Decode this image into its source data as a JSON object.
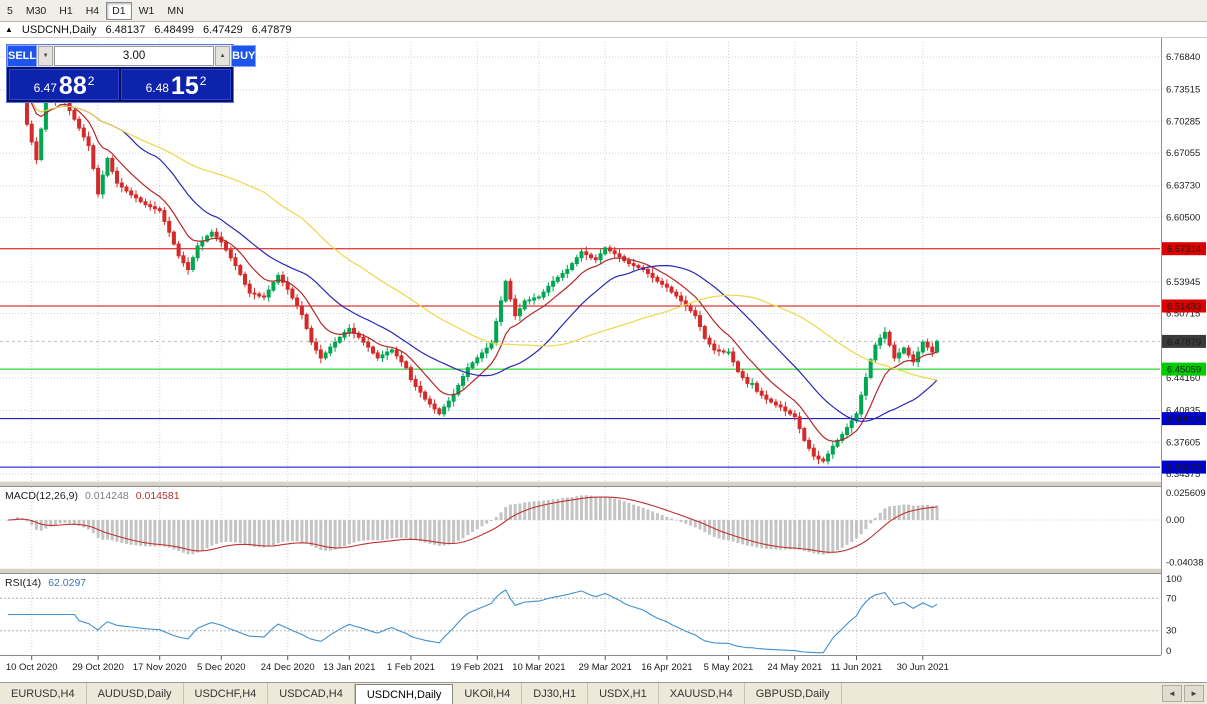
{
  "toolbar": {
    "timeframes": [
      "5",
      "M30",
      "H1",
      "H4",
      "D1",
      "W1",
      "MN"
    ],
    "active": "D1"
  },
  "chart_header": {
    "expand_icon": "▲",
    "symbol": "USDCNH,Daily",
    "open": "6.48137",
    "high": "6.48499",
    "low": "6.47429",
    "close": "6.47879"
  },
  "trade_widget": {
    "sell_label": "SELL",
    "buy_label": "BUY",
    "lot_size": "3.00",
    "lot_down_icon": "▼",
    "lot_up_icon": "▲",
    "sell_price": {
      "prefix": "6.47",
      "big": "88",
      "sup": "2"
    },
    "buy_price": {
      "prefix": "6.48",
      "big": "15",
      "sup": "2"
    }
  },
  "tabs": {
    "items": [
      "EURUSD,H4",
      "AUDUSD,Daily",
      "USDCHF,H4",
      "USDCAD,H4",
      "USDCNH,Daily",
      "UKOil,H4",
      "DJ30,H1",
      "USDX,H1",
      "XAUUSD,H4",
      "GBPUSD,Daily"
    ],
    "active": "USDCNH,Daily",
    "nav_left": "◄",
    "nav_right": "►"
  },
  "colors": {
    "bull": "#00a651",
    "bear": "#d42a2a",
    "ma_fast": "#b42828",
    "ma_mid": "#2828b4",
    "ma_slow": "#ecd848",
    "hline_red": "#dd0000",
    "hline_green": "#00cc00",
    "hline_blue": "#0000cc",
    "current_badge": "#3a3a3a",
    "macd_hist": "#c4c4c4",
    "macd_signal": "#c03232",
    "rsi_line": "#4090d0",
    "grid": "#d2d2d2",
    "axis_line": "#909090"
  },
  "chart_data": {
    "type": "candlestick",
    "symbol": "USDCNH",
    "timeframe": "Daily",
    "ohlc": {
      "open": 6.48137,
      "high": 6.48499,
      "low": 6.47429,
      "close": 6.47879
    },
    "current_price": {
      "value": 6.47879,
      "label": "6.47879"
    },
    "price_axis_range": [
      6.3366,
      6.7837
    ],
    "price_ticks": [
      "6.76840",
      "6.73515",
      "6.70285",
      "6.67055",
      "6.63730",
      "6.60500",
      "6.53945",
      "6.50715",
      "6.44160",
      "6.40835",
      "6.37605",
      "6.34375"
    ],
    "hlines": [
      {
        "price": 6.57314,
        "label": "6.57314",
        "color": "#dd0000"
      },
      {
        "price": 6.51483,
        "label": "6.51483",
        "color": "#dd0000"
      },
      {
        "price": 6.45059,
        "label": "6.45059",
        "color": "#00cc00"
      },
      {
        "price": 6.40019,
        "label": "6.40019",
        "color": "#0000cc"
      },
      {
        "price": 6.35078,
        "label": "6.35078",
        "color": "#0000cc"
      }
    ],
    "date_ticks": [
      {
        "label": "10 Oct 2020",
        "index": 5
      },
      {
        "label": "29 Oct 2020",
        "index": 19
      },
      {
        "label": "17 Nov 2020",
        "index": 32
      },
      {
        "label": "5 Dec 2020",
        "index": 45
      },
      {
        "label": "24 Dec 2020",
        "index": 59
      },
      {
        "label": "13 Jan 2021",
        "index": 72
      },
      {
        "label": "1 Feb 2021",
        "index": 85
      },
      {
        "label": "19 Feb 2021",
        "index": 99
      },
      {
        "label": "10 Mar 2021",
        "index": 112
      },
      {
        "label": "29 Mar 2021",
        "index": 126
      },
      {
        "label": "16 Apr 2021",
        "index": 139
      },
      {
        "label": "5 May 2021",
        "index": 152
      },
      {
        "label": "24 May 2021",
        "index": 166
      },
      {
        "label": "11 Jun 2021",
        "index": 179
      },
      {
        "label": "30 Jun 2021",
        "index": 193
      }
    ],
    "closes": [
      6.732,
      6.744,
      6.755,
      6.728,
      6.7,
      6.682,
      6.664,
      6.695,
      6.726,
      6.73,
      6.724,
      6.736,
      6.722,
      6.714,
      6.705,
      6.696,
      6.687,
      6.678,
      6.655,
      6.629,
      6.648,
      6.665,
      6.652,
      6.64,
      6.636,
      6.632,
      6.628,
      6.625,
      6.621,
      6.618,
      6.616,
      6.614,
      6.612,
      6.601,
      6.59,
      6.578,
      6.566,
      6.559,
      6.552,
      6.564,
      6.576,
      6.581,
      6.586,
      6.59,
      6.585,
      6.58,
      6.572,
      6.564,
      6.556,
      6.547,
      6.537,
      6.528,
      6.527,
      6.525,
      6.524,
      6.531,
      6.539,
      6.546,
      6.539,
      6.532,
      6.523,
      6.515,
      6.506,
      6.492,
      6.478,
      6.47,
      6.462,
      6.467,
      6.473,
      6.478,
      6.483,
      6.488,
      6.492,
      6.487,
      6.483,
      6.478,
      6.473,
      6.467,
      6.462,
      6.465,
      6.468,
      6.47,
      6.464,
      6.458,
      6.452,
      6.44,
      6.433,
      6.427,
      6.42,
      6.415,
      6.41,
      6.405,
      6.412,
      6.418,
      6.425,
      6.434,
      6.443,
      6.452,
      6.457,
      6.462,
      6.467,
      6.472,
      6.478,
      6.499,
      6.52,
      6.54,
      6.522,
      6.505,
      6.512,
      6.52,
      6.521,
      6.523,
      6.524,
      6.529,
      6.535,
      6.54,
      6.544,
      6.548,
      6.552,
      6.558,
      6.564,
      6.57,
      6.567,
      6.564,
      6.562,
      6.568,
      6.574,
      6.571,
      6.568,
      6.565,
      6.561,
      6.558,
      6.556,
      6.554,
      6.552,
      6.548,
      6.544,
      6.54,
      6.537,
      6.534,
      6.529,
      6.525,
      6.52,
      6.515,
      6.51,
      6.505,
      6.494,
      6.482,
      6.476,
      6.47,
      6.469,
      6.468,
      6.468,
      6.458,
      6.448,
      6.442,
      6.436,
      6.436,
      6.428,
      6.424,
      6.42,
      6.417,
      6.414,
      6.412,
      6.408,
      6.405,
      6.402,
      6.39,
      6.378,
      6.37,
      6.362,
      6.359,
      6.357,
      6.364,
      6.372,
      6.378,
      6.384,
      6.391,
      6.398,
      6.405,
      6.424,
      6.442,
      6.46,
      6.475,
      6.482,
      6.488,
      6.475,
      6.462,
      6.467,
      6.472,
      6.465,
      6.458,
      6.468,
      6.478,
      6.473,
      6.468,
      6.4788
    ],
    "indicators": {
      "ma": [
        {
          "type": "ema",
          "period": 10,
          "color": "#b42828"
        },
        {
          "type": "sma",
          "period": 25,
          "color": "#2828b4"
        },
        {
          "type": "sma",
          "period": 55,
          "color": "#ecd848"
        }
      ],
      "macd": {
        "label": "MACD(12,26,9)",
        "fast": 12,
        "slow": 26,
        "signal": 9,
        "main_value": "0.014248",
        "signal_value": "0.014581",
        "axis_ticks": [
          "0.025609",
          "0.00",
          "-0.04038"
        ]
      },
      "rsi": {
        "label": "RSI(14)",
        "period": 14,
        "value": "62.0297",
        "axis_ticks": [
          "100",
          "70",
          "30",
          "0"
        ],
        "upper_level": 70,
        "lower_level": 30
      }
    }
  }
}
